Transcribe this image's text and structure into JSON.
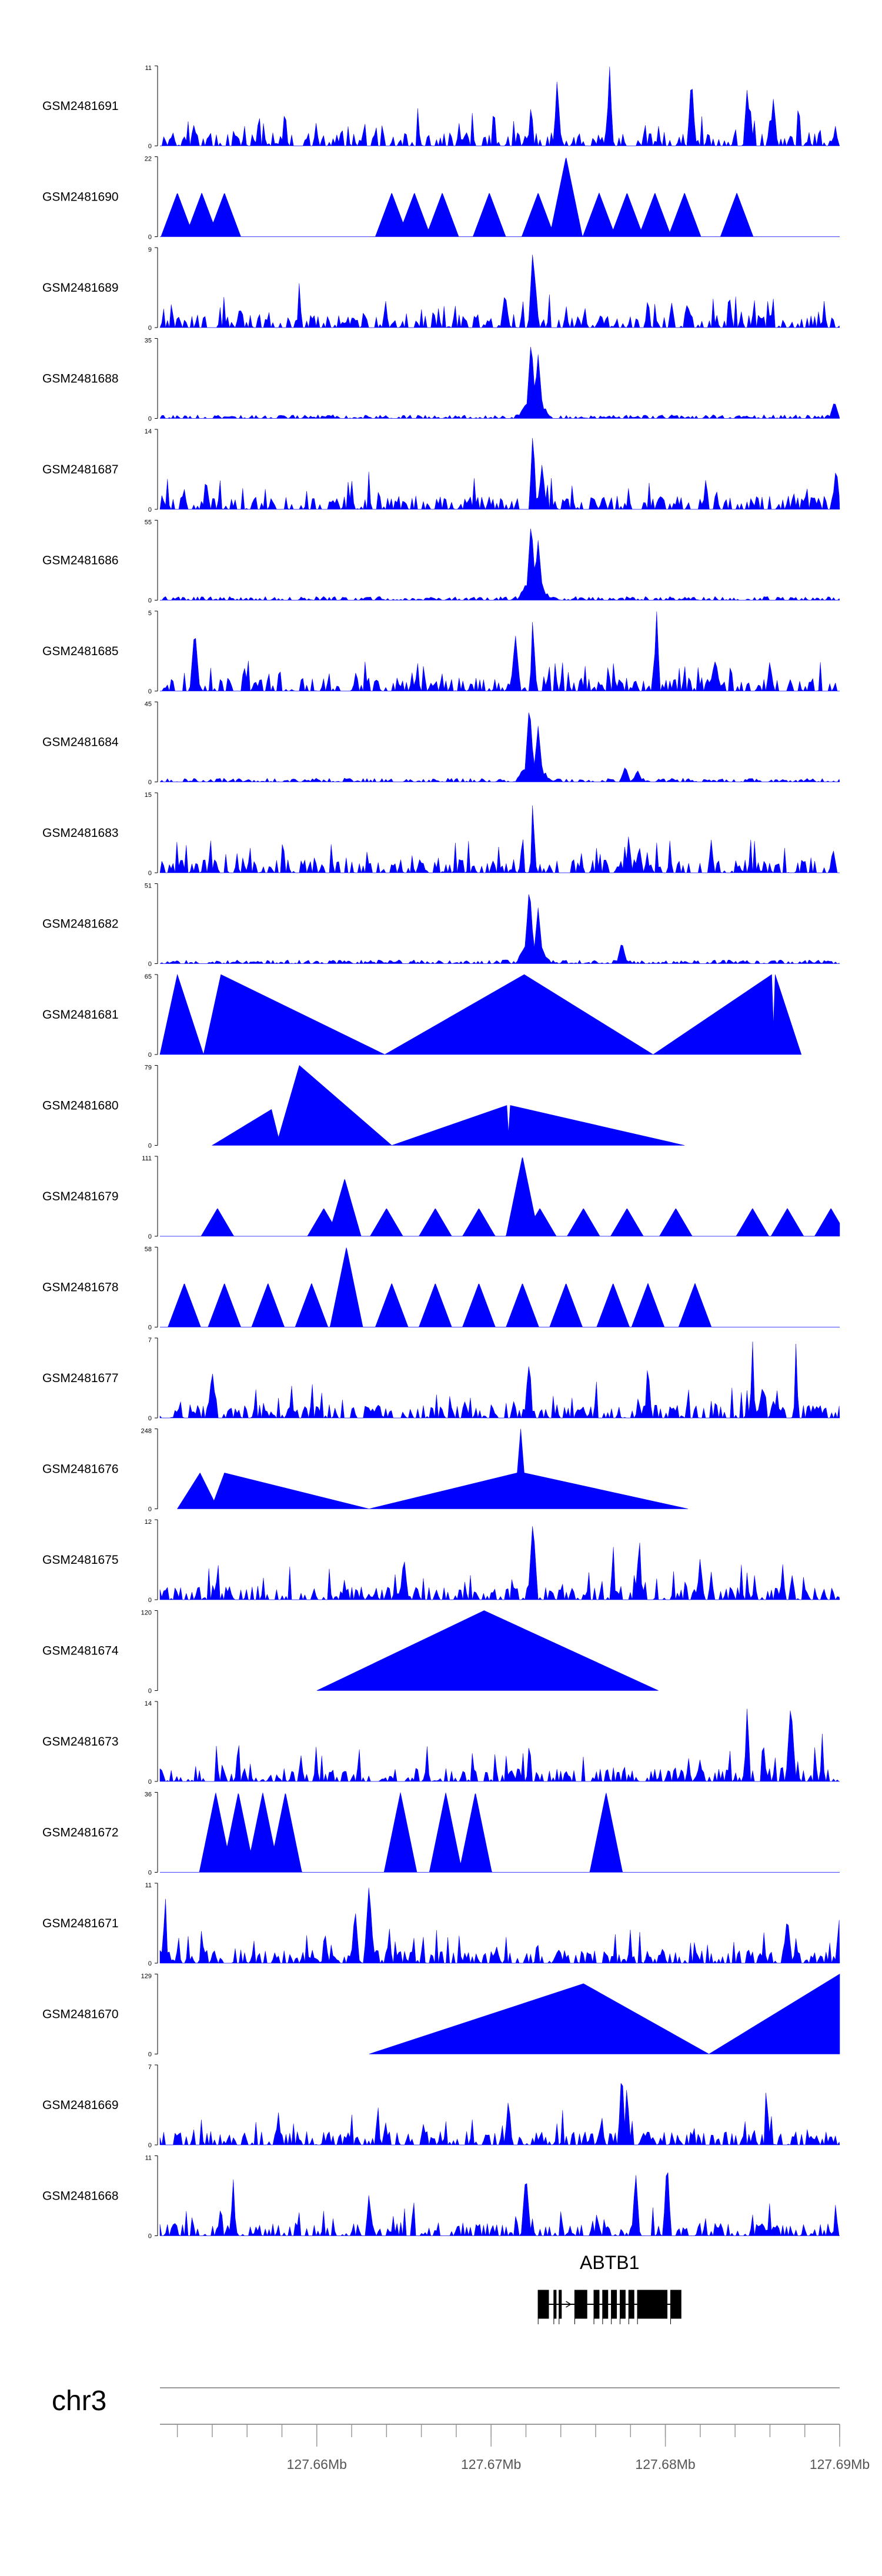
{
  "chart_data": {
    "type": "genome-browser-tracks",
    "fill_color": "#0000ff",
    "chromosome": "chr3",
    "x_axis": {
      "range_mb": [
        127.651,
        127.69
      ],
      "major_ticks_mb": [
        127.66,
        127.67,
        127.68,
        127.69
      ],
      "major_tick_labels": [
        "127.66Mb",
        "127.67Mb",
        "127.68Mb",
        "127.69Mb"
      ],
      "minor_tick_step_mb": 0.002
    },
    "gene": {
      "name": "ABTB1",
      "start_mb": 127.6727,
      "end_mb": 127.6809,
      "strand": "+",
      "exons_mb": [
        [
          127.6727,
          127.6733
        ],
        [
          127.6736,
          127.6737
        ],
        [
          127.6739,
          127.674
        ],
        [
          127.6748,
          127.6755
        ],
        [
          127.6759,
          127.6762
        ],
        [
          127.6764,
          127.6767
        ],
        [
          127.6769,
          127.6772
        ],
        [
          127.6774,
          127.6777
        ],
        [
          127.6779,
          127.6782
        ],
        [
          127.6784,
          127.6801
        ],
        [
          127.6803,
          127.6809
        ]
      ]
    },
    "tracks": [
      {
        "sample": "GSM2481691",
        "ymax": 11,
        "y_tick_labels": [
          "0",
          "11"
        ],
        "pattern": "dense",
        "peaks": [
          [
            127.6723,
            0.55
          ],
          [
            127.6738,
            0.9
          ],
          [
            127.6768,
            1.0
          ],
          [
            127.6815,
            0.9
          ],
          [
            127.6847,
            0.75
          ],
          [
            127.6862,
            0.6
          ]
        ]
      },
      {
        "sample": "GSM2481690",
        "ymax": 22,
        "y_tick_labels": [
          "0",
          "22"
        ],
        "pattern": "sparse",
        "peaks": [
          [
            127.652,
            0.55
          ],
          [
            127.6534,
            0.55
          ],
          [
            127.6547,
            0.55
          ],
          [
            127.6643,
            0.55
          ],
          [
            127.6656,
            0.55
          ],
          [
            127.6672,
            0.55
          ],
          [
            127.6699,
            0.55
          ],
          [
            127.6727,
            0.55
          ],
          [
            127.6743,
            1.0
          ],
          [
            127.6762,
            0.55
          ],
          [
            127.6778,
            0.55
          ],
          [
            127.6794,
            0.55
          ],
          [
            127.6811,
            0.55
          ],
          [
            127.6841,
            0.55
          ]
        ]
      },
      {
        "sample": "GSM2481689",
        "ymax": 9,
        "y_tick_labels": [
          "0",
          "9"
        ],
        "pattern": "dense",
        "peaks": [
          [
            127.6724,
            1.0
          ],
          [
            127.6708,
            0.45
          ],
          [
            127.659,
            0.6
          ],
          [
            127.679,
            0.4
          ]
        ]
      },
      {
        "sample": "GSM2481688",
        "ymax": 35,
        "y_tick_labels": [
          "0",
          "35"
        ],
        "pattern": "low-background",
        "peaks": [
          [
            127.6723,
            1.0
          ],
          [
            127.6727,
            0.8
          ],
          [
            127.6897,
            0.22
          ]
        ]
      },
      {
        "sample": "GSM2481687",
        "ymax": 14,
        "y_tick_labels": [
          "0",
          "14"
        ],
        "pattern": "dense",
        "peaks": [
          [
            127.6724,
            1.0
          ],
          [
            127.6729,
            0.6
          ],
          [
            127.6537,
            0.3
          ],
          [
            127.6898,
            0.55
          ]
        ]
      },
      {
        "sample": "GSM2481686",
        "ymax": 55,
        "y_tick_labels": [
          "0",
          "55"
        ],
        "pattern": "low-background",
        "peaks": [
          [
            127.6723,
            1.0
          ],
          [
            127.6727,
            0.75
          ]
        ]
      },
      {
        "sample": "GSM2481685",
        "ymax": 5,
        "y_tick_labels": [
          "0",
          "5"
        ],
        "pattern": "dense",
        "peaks": [
          [
            127.6714,
            0.7
          ],
          [
            127.6724,
            1.0
          ],
          [
            127.6795,
            1.0
          ],
          [
            127.686,
            0.4
          ],
          [
            127.653,
            0.8
          ]
        ]
      },
      {
        "sample": "GSM2481684",
        "ymax": 45,
        "y_tick_labels": [
          "0",
          "45"
        ],
        "pattern": "low-background",
        "peaks": [
          [
            127.6722,
            1.0
          ],
          [
            127.6727,
            0.7
          ],
          [
            127.6777,
            0.2
          ],
          [
            127.6784,
            0.15
          ]
        ]
      },
      {
        "sample": "GSM2481683",
        "ymax": 15,
        "y_tick_labels": [
          "0",
          "15"
        ],
        "pattern": "dense",
        "peaks": [
          [
            127.6718,
            0.55
          ],
          [
            127.6724,
            1.0
          ],
          [
            127.6779,
            0.5
          ],
          [
            127.6785,
            0.35
          ]
        ]
      },
      {
        "sample": "GSM2481682",
        "ymax": 51,
        "y_tick_labels": [
          "0",
          "51"
        ],
        "pattern": "low-background",
        "peaks": [
          [
            127.6722,
            1.0
          ],
          [
            127.6727,
            0.7
          ],
          [
            127.6775,
            0.28
          ]
        ]
      },
      {
        "sample": "GSM2481681",
        "ymax": 65,
        "y_tick_labels": [
          "0",
          "65"
        ],
        "line_mb": [
          [
            127.651,
            0
          ],
          [
            127.652,
            1.0
          ],
          [
            127.6535,
            0
          ],
          [
            127.6545,
            1.0
          ],
          [
            127.6639,
            0
          ],
          [
            127.6719,
            1.0
          ],
          [
            127.6793,
            0
          ],
          [
            127.6861,
            1.0
          ],
          [
            127.6862,
            0.35
          ],
          [
            127.6863,
            1.0
          ],
          [
            127.6878,
            0
          ]
        ]
      },
      {
        "sample": "GSM2481680",
        "ymax": 79,
        "y_tick_labels": [
          "0",
          "79"
        ],
        "line_mb": [
          [
            127.654,
            0
          ],
          [
            127.6574,
            0.45
          ],
          [
            127.6578,
            0.1
          ],
          [
            127.659,
            1.0
          ],
          [
            127.6643,
            0
          ],
          [
            127.6709,
            0.5
          ],
          [
            127.671,
            0.15
          ],
          [
            127.6711,
            0.5
          ],
          [
            127.6811,
            0
          ]
        ]
      },
      {
        "sample": "GSM2481679",
        "ymax": 111,
        "y_tick_labels": [
          "0",
          "111"
        ],
        "pattern": "sparse",
        "peaks": [
          [
            127.6543,
            0.35
          ],
          [
            127.6604,
            0.35
          ],
          [
            127.6616,
            0.72
          ],
          [
            127.664,
            0.35
          ],
          [
            127.6668,
            0.35
          ],
          [
            127.6693,
            0.35
          ],
          [
            127.6718,
            1.0
          ],
          [
            127.6728,
            0.35
          ],
          [
            127.6753,
            0.35
          ],
          [
            127.6778,
            0.35
          ],
          [
            127.6806,
            0.35
          ],
          [
            127.685,
            0.35
          ],
          [
            127.687,
            0.35
          ],
          [
            127.6895,
            0.35
          ]
        ]
      },
      {
        "sample": "GSM2481678",
        "ymax": 58,
        "y_tick_labels": [
          "0",
          "58"
        ],
        "pattern": "sparse",
        "peaks": [
          [
            127.6524,
            0.55
          ],
          [
            127.6547,
            0.55
          ],
          [
            127.6572,
            0.55
          ],
          [
            127.6597,
            0.55
          ],
          [
            127.6617,
            1.0
          ],
          [
            127.6643,
            0.55
          ],
          [
            127.6668,
            0.55
          ],
          [
            127.6693,
            0.55
          ],
          [
            127.6718,
            0.55
          ],
          [
            127.6743,
            0.55
          ],
          [
            127.677,
            0.55
          ],
          [
            127.679,
            0.55
          ],
          [
            127.6817,
            0.55
          ]
        ]
      },
      {
        "sample": "GSM2481677",
        "ymax": 7,
        "y_tick_labels": [
          "0",
          "7"
        ],
        "pattern": "dense",
        "peaks": [
          [
            127.6722,
            0.85
          ],
          [
            127.685,
            1.0
          ],
          [
            127.6875,
            1.0
          ],
          [
            127.679,
            0.75
          ],
          [
            127.654,
            0.6
          ]
        ]
      },
      {
        "sample": "GSM2481676",
        "ymax": 248,
        "y_tick_labels": [
          "0",
          "248"
        ],
        "line_mb": [
          [
            127.652,
            0
          ],
          [
            127.6533,
            0.45
          ],
          [
            127.6541,
            0.1
          ],
          [
            127.6547,
            0.45
          ],
          [
            127.663,
            0
          ],
          [
            127.6715,
            0.45
          ],
          [
            127.6717,
            1.0
          ],
          [
            127.6719,
            0.45
          ],
          [
            127.6813,
            0
          ]
        ]
      },
      {
        "sample": "GSM2481675",
        "ymax": 12,
        "y_tick_labels": [
          "0",
          "12"
        ],
        "pattern": "dense",
        "peaks": [
          [
            127.6724,
            1.0
          ],
          [
            127.665,
            0.55
          ],
          [
            127.677,
            0.75
          ],
          [
            127.6785,
            0.85
          ],
          [
            127.682,
            0.55
          ]
        ]
      },
      {
        "sample": "GSM2481674",
        "ymax": 120,
        "y_tick_labels": [
          "0",
          "120"
        ],
        "line_mb": [
          [
            127.66,
            0
          ],
          [
            127.6696,
            1.0
          ],
          [
            127.6796,
            0
          ]
        ]
      },
      {
        "sample": "GSM2481673",
        "ymax": 14,
        "y_tick_labels": [
          "0",
          "14"
        ],
        "pattern": "dense",
        "peaks": [
          [
            127.6847,
            1.0
          ],
          [
            127.6872,
            1.0
          ],
          [
            127.689,
            0.6
          ],
          [
            127.6722,
            0.55
          ]
        ]
      },
      {
        "sample": "GSM2481672",
        "ymax": 36,
        "y_tick_labels": [
          "0",
          "36"
        ],
        "pattern": "sparse",
        "peaks": [
          [
            127.6542,
            1.0
          ],
          [
            127.6555,
            1.0
          ],
          [
            127.6569,
            1.0
          ],
          [
            127.6582,
            1.0
          ],
          [
            127.6648,
            1.0
          ],
          [
            127.6674,
            1.0
          ],
          [
            127.6691,
            1.0
          ],
          [
            127.6766,
            1.0
          ]
        ]
      },
      {
        "sample": "GSM2481671",
        "ymax": 11,
        "y_tick_labels": [
          "0",
          "11"
        ],
        "pattern": "dense",
        "peaks": [
          [
            127.6513,
            0.95
          ],
          [
            127.663,
            1.0
          ],
          [
            127.6622,
            0.7
          ],
          [
            127.687,
            0.6
          ],
          [
            127.69,
            0.6
          ]
        ]
      },
      {
        "sample": "GSM2481670",
        "ymax": 129,
        "y_tick_labels": [
          "0",
          "129"
        ],
        "line_mb": [
          [
            127.663,
            0
          ],
          [
            127.6753,
            0.88
          ],
          [
            127.6825,
            0
          ],
          [
            127.69,
            1.0
          ]
        ]
      },
      {
        "sample": "GSM2481669",
        "ymax": 7,
        "y_tick_labels": [
          "0",
          "7"
        ],
        "pattern": "dense",
        "peaks": [
          [
            127.6775,
            1.0
          ],
          [
            127.6778,
            0.8
          ],
          [
            127.6858,
            0.9
          ],
          [
            127.671,
            0.6
          ],
          [
            127.6635,
            0.55
          ]
        ]
      },
      {
        "sample": "GSM2481668",
        "ymax": 11,
        "y_tick_labels": [
          "0",
          "11"
        ],
        "pattern": "dense",
        "peaks": [
          [
            127.6801,
            1.0
          ],
          [
            127.6552,
            0.75
          ],
          [
            127.672,
            0.8
          ],
          [
            127.6783,
            0.8
          ],
          [
            127.663,
            0.55
          ]
        ]
      }
    ]
  }
}
